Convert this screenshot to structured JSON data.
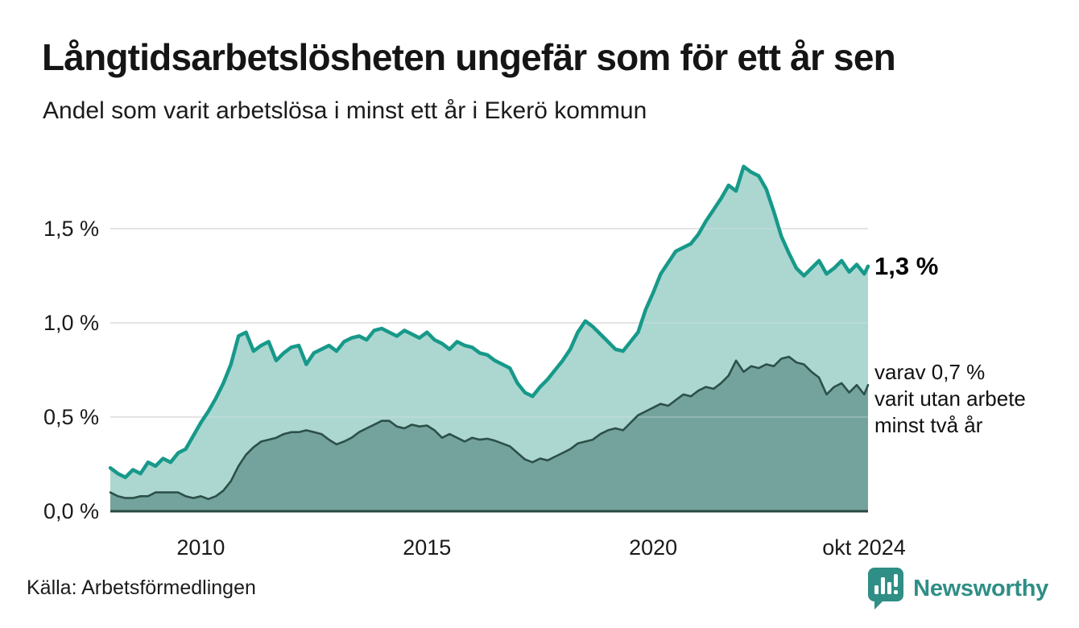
{
  "header": {
    "title": "Långtidsarbetslösheten ungefär som för ett år sen",
    "subtitle": "Andel som varit arbetslösa i minst ett år i Ekerö kommun"
  },
  "annotations": {
    "total_label": "1,3 %",
    "varav_line1": "varav 0,7 %",
    "varav_line2": "varit utan arbete",
    "varav_line3": "minst två år"
  },
  "footer": {
    "source": "Källa: Arbetsförmedlingen",
    "brand_name": "Newsworthy",
    "brand_color": "#2f8e85",
    "brand_icon": "bar-chart-speech-bubble-icon"
  },
  "chart_data": {
    "type": "area",
    "title": "Långtidsarbetslösheten ungefär som för ett år sen",
    "subtitle": "Andel som varit arbetslösa i minst ett år i Ekerö kommun",
    "xlabel": "",
    "ylabel": "",
    "xlim": [
      2008.0,
      2024.75
    ],
    "ylim": [
      0,
      1.9
    ],
    "x_start": 2008.0,
    "x_step_years": 0.1666667,
    "grid": "horizontal",
    "legend_position": "right-edge-annotations",
    "xticks": {
      "values": [
        2010,
        2015,
        2020,
        2024.75
      ],
      "labels": [
        "2010",
        "2015",
        "2020",
        "okt 2024"
      ]
    },
    "yticks": {
      "values": [
        0,
        0.5,
        1.0,
        1.5
      ],
      "labels": [
        "0,0 %",
        "0,5 %",
        "1,0 %",
        "1,5 %"
      ]
    },
    "colors": {
      "series1_line": "#17998a",
      "series1_fill": "#abd7d0",
      "series2_line": "#2c5049",
      "series2_fill": "#73a39c",
      "baseline": "#2b4742",
      "gridline": "#dcdcdc",
      "tick_text": "#1a1a1a"
    },
    "series": [
      {
        "name": "Andel arbetslösa minst ett år",
        "end_value_label": "1,3 %",
        "values": [
          0.23,
          0.2,
          0.18,
          0.22,
          0.2,
          0.26,
          0.24,
          0.28,
          0.26,
          0.31,
          0.33,
          0.4,
          0.47,
          0.53,
          0.6,
          0.68,
          0.78,
          0.93,
          0.95,
          0.85,
          0.88,
          0.9,
          0.8,
          0.84,
          0.87,
          0.88,
          0.78,
          0.84,
          0.86,
          0.88,
          0.85,
          0.9,
          0.92,
          0.93,
          0.91,
          0.96,
          0.97,
          0.95,
          0.93,
          0.96,
          0.94,
          0.92,
          0.95,
          0.91,
          0.89,
          0.86,
          0.9,
          0.88,
          0.87,
          0.84,
          0.83,
          0.8,
          0.78,
          0.76,
          0.68,
          0.63,
          0.61,
          0.66,
          0.7,
          0.75,
          0.8,
          0.86,
          0.95,
          1.01,
          0.98,
          0.94,
          0.9,
          0.86,
          0.85,
          0.9,
          0.95,
          1.07,
          1.16,
          1.26,
          1.32,
          1.38,
          1.4,
          1.42,
          1.47,
          1.54,
          1.6,
          1.66,
          1.73,
          1.7,
          1.83,
          1.8,
          1.78,
          1.71,
          1.59,
          1.46,
          1.37,
          1.29,
          1.25,
          1.29,
          1.33,
          1.26,
          1.29,
          1.33,
          1.27,
          1.31,
          1.26,
          1.3
        ]
      },
      {
        "name": "varav utan arbete minst två år",
        "end_value_label": "0,7 %",
        "values": [
          0.1,
          0.08,
          0.07,
          0.07,
          0.08,
          0.08,
          0.1,
          0.1,
          0.1,
          0.1,
          0.08,
          0.07,
          0.08,
          0.065,
          0.08,
          0.11,
          0.16,
          0.24,
          0.3,
          0.34,
          0.37,
          0.38,
          0.39,
          0.41,
          0.42,
          0.42,
          0.43,
          0.42,
          0.41,
          0.38,
          0.355,
          0.37,
          0.39,
          0.42,
          0.44,
          0.46,
          0.48,
          0.48,
          0.45,
          0.44,
          0.46,
          0.45,
          0.455,
          0.43,
          0.39,
          0.41,
          0.39,
          0.37,
          0.39,
          0.38,
          0.385,
          0.375,
          0.36,
          0.345,
          0.31,
          0.275,
          0.26,
          0.28,
          0.27,
          0.29,
          0.31,
          0.33,
          0.36,
          0.37,
          0.38,
          0.41,
          0.43,
          0.44,
          0.43,
          0.47,
          0.51,
          0.53,
          0.55,
          0.57,
          0.56,
          0.59,
          0.62,
          0.61,
          0.64,
          0.66,
          0.65,
          0.68,
          0.72,
          0.8,
          0.74,
          0.77,
          0.76,
          0.78,
          0.77,
          0.81,
          0.82,
          0.79,
          0.78,
          0.74,
          0.71,
          0.62,
          0.66,
          0.68,
          0.63,
          0.67,
          0.62,
          0.67
        ]
      }
    ]
  }
}
